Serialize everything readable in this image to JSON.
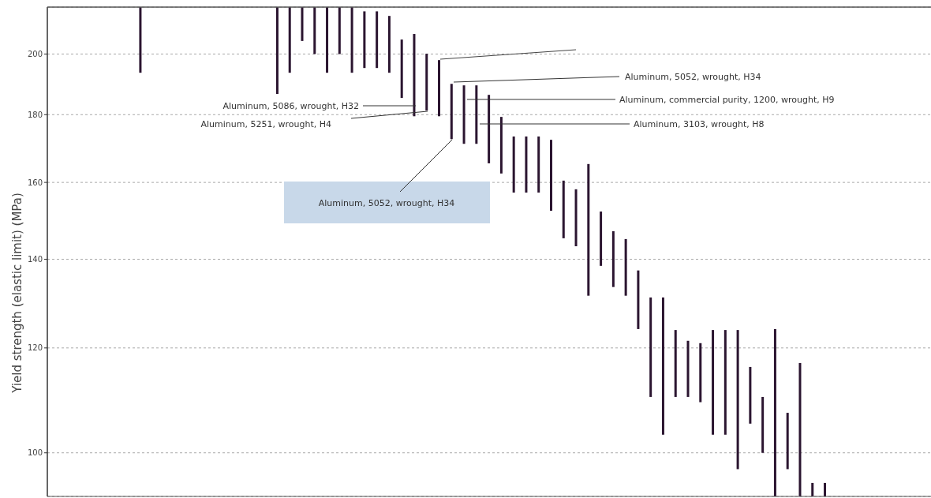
{
  "chart_data": {
    "type": "bar",
    "ylabel": "Yield strength (elastic limit) (MPa)",
    "categories": [
      null,
      null,
      null,
      null,
      null,
      null,
      null,
      null,
      null,
      null,
      null,
      null,
      null,
      null,
      null,
      null,
      null,
      null,
      null,
      null,
      null,
      null,
      null,
      null,
      null,
      null,
      null,
      null,
      null,
      null,
      null,
      null,
      null,
      null,
      null,
      null,
      null,
      null,
      null,
      null,
      null,
      null,
      null,
      null,
      null,
      null,
      null,
      null,
      null,
      null,
      null,
      null,
      null,
      null,
      null,
      null,
      null,
      null,
      null,
      null,
      null,
      null,
      null,
      null,
      null,
      null,
      null,
      null,
      null,
      null,
      null
    ],
    "base": [
      null,
      null,
      null,
      null,
      null,
      null,
      null,
      193.6,
      null,
      null,
      null,
      null,
      null,
      null,
      null,
      null,
      null,
      null,
      186.6,
      193.6,
      204.6,
      200,
      193.6,
      200,
      193.6,
      195.2,
      195.2,
      193.6,
      185.3,
      179.5,
      181.3,
      179.5,
      172.5,
      171.1,
      171.1,
      165.4,
      162.5,
      157.2,
      157.2,
      157.2,
      152.3,
      145.2,
      143.2,
      131.4,
      138.4,
      133.4,
      131.4,
      124,
      110.2,
      103.2,
      110.2,
      110.2,
      109.2,
      103.2,
      103.2,
      97.2,
      105.2,
      100,
      92.7,
      97.2,
      92.7,
      92.7,
      92.7,
      null,
      null,
      null,
      null,
      null,
      null,
      null,
      null
    ],
    "values": [
      null,
      null,
      null,
      null,
      null,
      null,
      null,
      23.4,
      null,
      null,
      null,
      null,
      null,
      null,
      null,
      null,
      null,
      null,
      30.4,
      23.4,
      12.4,
      17,
      23.4,
      17,
      23.4,
      20.2,
      20.2,
      20.1,
      19.8,
      27.6,
      18.8,
      18.4,
      17.4,
      18.3,
      18.3,
      20.9,
      16.8,
      16.1,
      16.1,
      16.1,
      20,
      15.3,
      14.9,
      33.8,
      13.7,
      13.6,
      13.6,
      13.3,
      20.8,
      27.8,
      13.6,
      11.3,
      11.8,
      20.6,
      20.6,
      26.6,
      10.9,
      10.2,
      31.3,
      10,
      24.2,
      2.2,
      2.2,
      null,
      null,
      null,
      null,
      null,
      null,
      null,
      null
    ],
    "color": "#2b1530",
    "log": true,
    "ylim": [
      92.7,
      217
    ],
    "yticks": [
      100,
      120,
      140,
      160,
      180,
      200
    ],
    "grid": "y",
    "tick_labels": "y",
    "annotations": [
      "Aluminum, 5052, wrought, H34",
      "Aluminum, commercial purity, 1200, wrought, H9",
      "Aluminum, 3103, wrought, H8",
      "Aluminum, 5086, wrought, H32",
      "Aluminum, 5251, wrought, H4",
      "Aluminum, 5052, wrought, H34"
    ]
  }
}
